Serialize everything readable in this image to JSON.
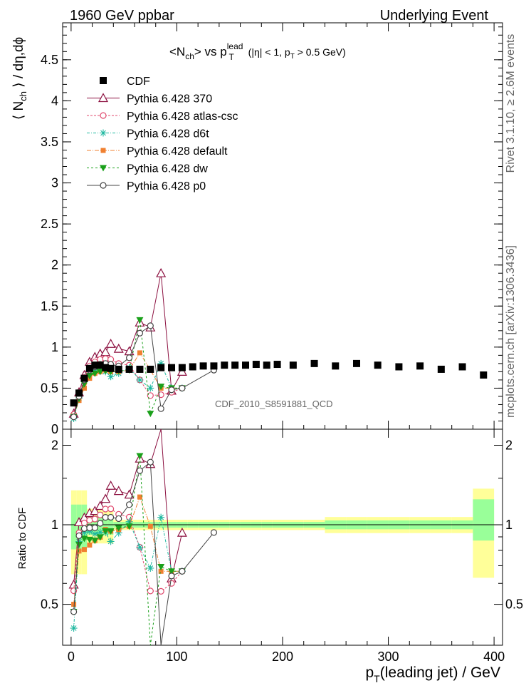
{
  "header": {
    "left": "1960 GeV ppbar",
    "right": "Underlying Event"
  },
  "right_margin": {
    "rivet": "Rivet 3.1.10, ≥ 2.6M events",
    "mcplots": "mcplots.cern.ch [arXiv:1306.3436]"
  },
  "chart_data": {
    "type": "line",
    "title_parts": {
      "a": "<N",
      "a_sub": "ch",
      "b": "> vs p",
      "b_sup": "lead",
      "b_sub": "T",
      "c": " (|η| < 1, p",
      "c_sub": "T",
      "d": " > 0.5 GeV)"
    },
    "ylabel_parts": {
      "a": "⟨ N",
      "a_sub": "ch",
      "b": " ⟩ / dη,dϕ"
    },
    "xlabel_parts": {
      "a": "p",
      "a_sub": "T",
      "b": "(leading jet) / GeV"
    },
    "ratio_ylabel": "Ratio to CDF",
    "analysis_label": "CDF_2010_S8591881_QCD",
    "x_range": [
      -8,
      408
    ],
    "y_range": [
      0,
      4.95
    ],
    "ratio_range": [
      0.35,
      2.3
    ],
    "x_ticks": [
      "0",
      "100",
      "200",
      "300",
      "400"
    ],
    "y_ticks": [
      "0",
      "0.5",
      "1",
      "1.5",
      "2",
      "2.5",
      "3",
      "3.5",
      "4",
      "4.5"
    ],
    "ratio_ticks": [
      "0.5",
      "1",
      "2"
    ],
    "legend_position": "top-left",
    "series": [
      {
        "name": "CDF",
        "color": "#000000",
        "marker": "square",
        "dash": "",
        "line": false,
        "x": [
          2.5,
          7.5,
          12.5,
          17.5,
          22.5,
          27.5,
          32.5,
          37.5,
          45,
          55,
          65,
          75,
          85,
          95,
          105,
          115,
          125,
          135,
          145,
          155,
          165,
          175,
          185,
          195,
          210,
          230,
          250,
          270,
          290,
          310,
          330,
          350,
          370,
          390
        ],
        "y": [
          0.32,
          0.44,
          0.62,
          0.74,
          0.78,
          0.78,
          0.75,
          0.74,
          0.73,
          0.73,
          0.73,
          0.73,
          0.75,
          0.75,
          0.75,
          0.76,
          0.77,
          0.77,
          0.78,
          0.78,
          0.78,
          0.79,
          0.78,
          0.79,
          0.78,
          0.8,
          0.77,
          0.8,
          0.78,
          0.76,
          0.77,
          0.73,
          0.76,
          0.66
        ]
      },
      {
        "name": "Pythia 6.428 370",
        "color": "#8b0f3f",
        "marker": "triangle-open",
        "dash": "",
        "line": true,
        "x": [
          2.5,
          7.5,
          12.5,
          17.5,
          22.5,
          27.5,
          32.5,
          37.5,
          45,
          55,
          65,
          75,
          85,
          95,
          105
        ],
        "y": [
          0.19,
          0.45,
          0.66,
          0.82,
          0.88,
          0.92,
          0.94,
          1.04,
          0.98,
          0.95,
          1.3,
          1.24,
          1.9,
          0.47,
          0.7
        ]
      },
      {
        "name": "Pythia 6.428 atlas-csc",
        "color": "#e04a6e",
        "marker": "circle-open",
        "dash": "3,2",
        "line": true,
        "x": [
          2.5,
          7.5,
          12.5,
          17.5,
          22.5,
          27.5,
          32.5,
          37.5,
          45,
          55,
          65,
          75,
          85,
          95,
          105
        ],
        "y": [
          0.18,
          0.41,
          0.63,
          0.77,
          0.82,
          0.85,
          0.86,
          0.85,
          0.8,
          0.78,
          0.6,
          0.41,
          0.42,
          0.45,
          0.5
        ]
      },
      {
        "name": "Pythia 6.428 d6t",
        "color": "#1fb8a0",
        "marker": "star",
        "dash": "4,2,1,2",
        "line": true,
        "x": [
          2.5,
          7.5,
          12.5,
          17.5,
          22.5,
          27.5,
          32.5,
          37.5,
          45,
          55,
          65,
          75,
          85,
          95,
          105
        ],
        "y": [
          0.13,
          0.38,
          0.58,
          0.7,
          0.72,
          0.73,
          0.7,
          0.64,
          0.68,
          0.75,
          0.6,
          0.5,
          0.8,
          0.5,
          0.5
        ]
      },
      {
        "name": "Pythia 6.428 default",
        "color": "#f08030",
        "marker": "square-small",
        "dash": "6,2,1,2",
        "line": true,
        "x": [
          2.5,
          7.5,
          12.5,
          17.5,
          22.5,
          27.5,
          32.5,
          37.5,
          45,
          55,
          65,
          75,
          85,
          95,
          105
        ],
        "y": [
          0.16,
          0.35,
          0.5,
          0.62,
          0.68,
          0.7,
          0.72,
          0.7,
          0.7,
          0.72,
          0.93,
          0.72,
          0.5,
          0.5,
          0.5
        ]
      },
      {
        "name": "Pythia 6.428 dw",
        "color": "#1aa01a",
        "marker": "triangle-down",
        "dash": "3,3",
        "line": true,
        "x": [
          2.5,
          7.5,
          12.5,
          17.5,
          22.5,
          27.5,
          32.5,
          37.5,
          45,
          55,
          65,
          75,
          85,
          95,
          105
        ],
        "y": [
          0.15,
          0.37,
          0.55,
          0.65,
          0.68,
          0.7,
          0.71,
          0.7,
          0.71,
          0.72,
          1.33,
          0.19,
          0.52,
          0.5,
          0.5
        ]
      },
      {
        "name": "Pythia 6.428 p0",
        "color": "#444444",
        "marker": "circle-open",
        "dash": "",
        "line": true,
        "x": [
          2.5,
          7.5,
          12.5,
          17.5,
          22.5,
          27.5,
          32.5,
          37.5,
          45,
          55,
          65,
          75,
          85,
          95,
          105,
          135
        ],
        "y": [
          0.15,
          0.4,
          0.6,
          0.72,
          0.76,
          0.79,
          0.8,
          0.79,
          0.77,
          0.87,
          1.17,
          1.26,
          0.25,
          0.48,
          0.5,
          0.72
        ]
      }
    ]
  }
}
